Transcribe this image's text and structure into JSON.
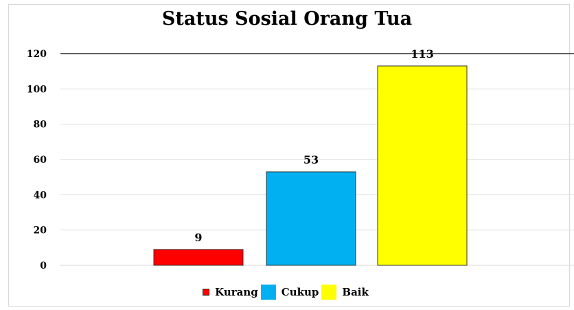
{
  "chart_data": {
    "type": "bar",
    "title": "Status Sosial Orang Tua",
    "categories": [
      "Kurang",
      "Cukup",
      "Baik"
    ],
    "values": [
      9,
      53,
      113
    ],
    "data_labels": [
      "9",
      "53",
      "113"
    ],
    "colors": [
      "#ff0000",
      "#00b0f0",
      "#ffff00"
    ],
    "ylim": [
      0,
      120
    ],
    "yticks": [
      "0",
      "20",
      "40",
      "60",
      "80",
      "100",
      "120"
    ],
    "grid": true,
    "legend_position": "bottom",
    "xlabel": "",
    "ylabel": ""
  }
}
